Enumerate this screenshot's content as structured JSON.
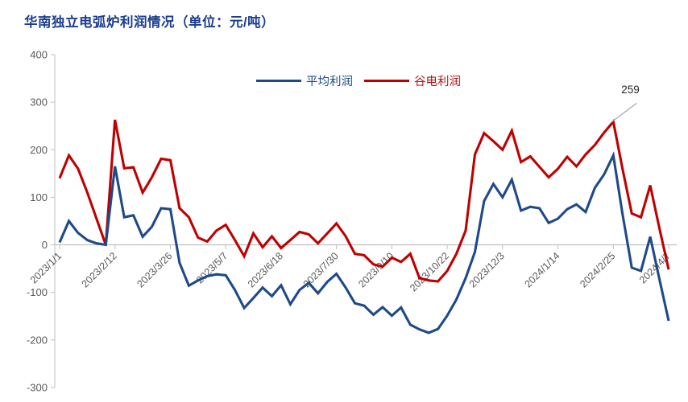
{
  "title": "华南独立电弧炉利润情况（单位：元/吨）",
  "legend": [
    {
      "label": "平均利润",
      "color": "#1e4a89"
    },
    {
      "label": "谷电利润",
      "color": "#c00000"
    }
  ],
  "colors": {
    "title": "#1c3d8f",
    "axis": "#bfbfbf",
    "tick_text": "#595959",
    "annotation_line": "#a6a6a6",
    "series_average": "#1e4a89",
    "series_valley": "#c00000"
  },
  "chart_data": {
    "type": "line",
    "title": "华南独立电弧炉利润情况（单位：元/吨）",
    "x": [
      "2023/1/1",
      "2023/1/8",
      "2023/1/15",
      "2023/1/22",
      "2023/1/29",
      "2023/2/5",
      "2023/2/12",
      "2023/2/19",
      "2023/2/26",
      "2023/3/5",
      "2023/3/12",
      "2023/3/19",
      "2023/3/26",
      "2023/4/2",
      "2023/4/9",
      "2023/4/16",
      "2023/4/23",
      "2023/4/30",
      "2023/5/7",
      "2023/5/14",
      "2023/5/21",
      "2023/5/28",
      "2023/6/4",
      "2023/6/11",
      "2023/6/18",
      "2023/6/25",
      "2023/7/2",
      "2023/7/9",
      "2023/7/16",
      "2023/7/23",
      "2023/7/30",
      "2023/8/6",
      "2023/8/13",
      "2023/8/20",
      "2023/8/27",
      "2023/9/3",
      "2023/9/10",
      "2023/9/17",
      "2023/9/24",
      "2023/10/1",
      "2023/10/8",
      "2023/10/15",
      "2023/10/22",
      "2023/10/29",
      "2023/11/5",
      "2023/11/12",
      "2023/11/19",
      "2023/11/26",
      "2023/12/3",
      "2023/12/10",
      "2023/12/17",
      "2023/12/24",
      "2023/12/31",
      "2024/1/7",
      "2024/1/14",
      "2024/1/21",
      "2024/1/28",
      "2024/2/4",
      "2024/2/11",
      "2024/2/18",
      "2024/2/25",
      "2024/3/3",
      "2024/3/10",
      "2024/3/17",
      "2024/3/24",
      "2024/3/31",
      "2024/4/7"
    ],
    "x_tick_labels": [
      "2023/1/1",
      "2023/2/12",
      "2023/3/26",
      "2023/5/7",
      "2023/6/18",
      "2023/7/30",
      "2023/9/10",
      "2023/10/22",
      "2023/12/3",
      "2024/1/14",
      "2024/2/25",
      "2024/4/7"
    ],
    "x_tick_indices": [
      0,
      6,
      12,
      18,
      24,
      30,
      36,
      42,
      48,
      54,
      60,
      66
    ],
    "series": [
      {
        "name": "平均利润",
        "color": "#1e4a89",
        "values": [
          5,
          50,
          25,
          10,
          3,
          0,
          165,
          58,
          62,
          17,
          38,
          77,
          75,
          -38,
          -86,
          -75,
          -66,
          -62,
          -64,
          -95,
          -133,
          -112,
          -90,
          -108,
          -85,
          -125,
          -95,
          -80,
          -102,
          -78,
          -61,
          -90,
          -123,
          -128,
          -147,
          -131,
          -149,
          -132,
          -168,
          -178,
          -185,
          -177,
          -149,
          -115,
          -70,
          -15,
          92,
          128,
          100,
          137,
          72,
          80,
          77,
          46,
          55,
          75,
          85,
          69,
          120,
          148,
          188,
          65,
          -48,
          -55,
          17,
          -72,
          -160
        ]
      },
      {
        "name": "谷电利润",
        "color": "#c00000",
        "values": [
          140,
          188,
          160,
          110,
          55,
          0,
          263,
          161,
          163,
          110,
          142,
          181,
          178,
          77,
          58,
          15,
          7,
          30,
          42,
          10,
          -24,
          24,
          -5,
          18,
          -7,
          10,
          27,
          22,
          3,
          24,
          45,
          18,
          -19,
          -22,
          -41,
          -46,
          -27,
          -36,
          -19,
          -70,
          -75,
          -77,
          -55,
          -19,
          30,
          190,
          235,
          218,
          200,
          240,
          174,
          186,
          164,
          142,
          160,
          185,
          165,
          190,
          210,
          236,
          259,
          160,
          66,
          58,
          125,
          35,
          -52
        ]
      }
    ],
    "ylim": [
      -300,
      400
    ],
    "yticks": [
      400,
      300,
      200,
      100,
      0,
      -100,
      -200,
      -300
    ],
    "grid": "zero-line-only",
    "legend_position": "top-center",
    "annotation": {
      "text": "259",
      "series": "谷电利润",
      "x": "2024/2/25",
      "y": 259
    }
  }
}
